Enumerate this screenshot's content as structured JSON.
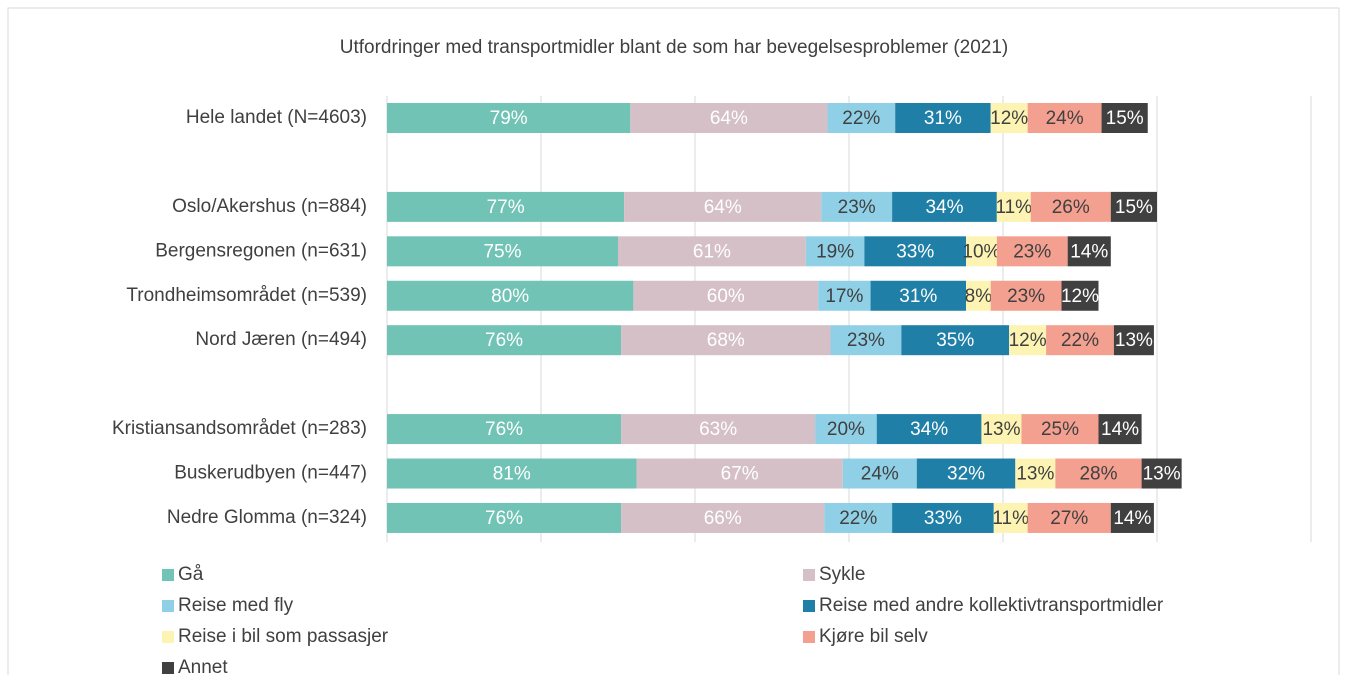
{
  "chart_data": {
    "type": "stacked-bar-horizontal",
    "title": "Utfordringer med transportmidler blant de som har bevegelsesproblemer (2021)",
    "categories": [
      "Hele landet (N=4603)",
      null,
      "Oslo/Akershus (n=884)",
      "Bergensregonen (n=631)",
      "Trondheimsområdet (n=539)",
      "Nord Jæren (n=494)",
      null,
      "Kristiansandsområdet (n=283)",
      "Buskerudbyen (n=447)",
      "Nedre Glomma (n=324)"
    ],
    "series": [
      {
        "name": "Gå",
        "color": "#70c3b5",
        "label_color": "#ffffff",
        "values": [
          79,
          null,
          77,
          75,
          80,
          76,
          null,
          76,
          81,
          76
        ]
      },
      {
        "name": "Sykle",
        "color": "#d5c0c8",
        "label_color": "#ffffff",
        "values": [
          64,
          null,
          64,
          61,
          60,
          68,
          null,
          63,
          67,
          66
        ]
      },
      {
        "name": "Reise med fly",
        "color": "#8fd0e6",
        "label_color": "#404040",
        "values": [
          22,
          null,
          23,
          19,
          17,
          23,
          null,
          20,
          24,
          22
        ]
      },
      {
        "name": "Reise med andre kollektivtransportmidler",
        "color": "#1f7fa6",
        "label_color": "#ffffff",
        "values": [
          31,
          null,
          34,
          33,
          31,
          35,
          null,
          34,
          32,
          33
        ]
      },
      {
        "name": "Reise i bil som passasjer",
        "color": "#fdf4b3",
        "label_color": "#404040",
        "values": [
          12,
          null,
          11,
          10,
          8,
          12,
          null,
          13,
          13,
          11
        ]
      },
      {
        "name": "Kjøre bil selv",
        "color": "#f4a090",
        "label_color": "#404040",
        "values": [
          24,
          null,
          26,
          23,
          23,
          22,
          null,
          25,
          28,
          27
        ]
      },
      {
        "name": "Annet",
        "color": "#404040",
        "label_color": "#ffffff",
        "values": [
          15,
          null,
          15,
          14,
          12,
          13,
          null,
          14,
          13,
          14
        ]
      }
    ],
    "value_labels": [
      [
        "79%",
        null,
        "77%",
        "75%",
        "80%",
        "76%",
        null,
        "76%",
        "81%",
        "76%"
      ],
      [
        "64%",
        null,
        "64%",
        "61%",
        "60%",
        "68%",
        null,
        "63%",
        "67%",
        "66%"
      ],
      [
        "22%",
        null,
        "23%",
        "19%",
        "17%",
        "23%",
        null,
        "20%",
        "24%",
        "22%"
      ],
      [
        "31%",
        null,
        "34%",
        "33%",
        "31%",
        "35%",
        null,
        "34%",
        "32%",
        "33%"
      ],
      [
        "12%",
        null,
        "11%",
        "10%",
        "8%",
        "12%",
        null,
        "13%",
        "13%",
        "11%"
      ],
      [
        "24%",
        null,
        "26%",
        "23%",
        "23%",
        "22%",
        null,
        "25%",
        "28%",
        "27%"
      ],
      [
        "15%",
        null,
        "15%",
        "14%",
        "12%",
        "13%",
        null,
        "14%",
        "13%",
        "14%"
      ]
    ],
    "xlim": [
      0,
      300
    ],
    "xticks": [
      0,
      50,
      100,
      150,
      200,
      250,
      300
    ],
    "grid": true,
    "legend": "bottom"
  }
}
